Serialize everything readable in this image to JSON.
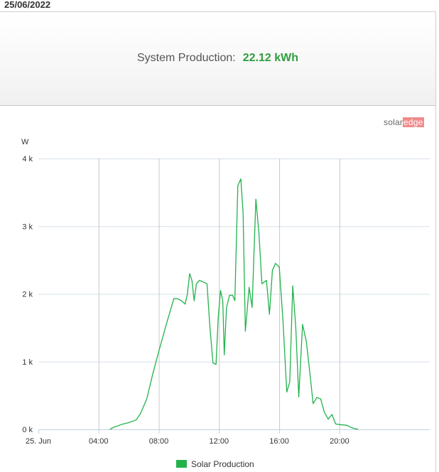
{
  "header": {
    "date": "25/06/2022"
  },
  "summary": {
    "label": "System Production:",
    "value": "22.12 kWh"
  },
  "brand": {
    "part1": "solar",
    "part2": "edge"
  },
  "colors": {
    "series": "#22b24c",
    "value": "#2e9d3e",
    "grid": "#d7e0ea",
    "axis": "#c0d0e0"
  },
  "chart_data": {
    "type": "line",
    "ylabel": "W",
    "ylim": [
      0,
      4000
    ],
    "xlim": [
      0,
      26
    ],
    "grid": true,
    "legend_position": "bottom-center",
    "x_ticks": [
      {
        "value": 0,
        "label": "25. Jun"
      },
      {
        "value": 4,
        "label": "04:00"
      },
      {
        "value": 8,
        "label": "08:00"
      },
      {
        "value": 12,
        "label": "12:00"
      },
      {
        "value": 16,
        "label": "16:00"
      },
      {
        "value": 20,
        "label": "20:00"
      }
    ],
    "y_ticks": [
      {
        "value": 0,
        "label": "0 k"
      },
      {
        "value": 1000,
        "label": "1 k"
      },
      {
        "value": 2000,
        "label": "2 k"
      },
      {
        "value": 3000,
        "label": "3 k"
      },
      {
        "value": 4000,
        "label": "4 k"
      }
    ],
    "series": [
      {
        "name": "Solar Production",
        "points": [
          [
            4.75,
            0
          ],
          [
            5.0,
            30
          ],
          [
            5.5,
            70
          ],
          [
            6.0,
            100
          ],
          [
            6.5,
            140
          ],
          [
            6.8,
            240
          ],
          [
            7.2,
            450
          ],
          [
            7.6,
            820
          ],
          [
            8.0,
            1150
          ],
          [
            8.5,
            1550
          ],
          [
            9.0,
            1930
          ],
          [
            9.25,
            1930
          ],
          [
            9.5,
            1900
          ],
          [
            9.75,
            1850
          ],
          [
            9.9,
            2000
          ],
          [
            10.05,
            2300
          ],
          [
            10.2,
            2200
          ],
          [
            10.35,
            1900
          ],
          [
            10.5,
            2150
          ],
          [
            10.7,
            2200
          ],
          [
            11.0,
            2170
          ],
          [
            11.2,
            2150
          ],
          [
            11.4,
            1500
          ],
          [
            11.6,
            980
          ],
          [
            11.8,
            960
          ],
          [
            11.95,
            1650
          ],
          [
            12.1,
            2050
          ],
          [
            12.25,
            1900
          ],
          [
            12.35,
            1100
          ],
          [
            12.5,
            1800
          ],
          [
            12.7,
            1980
          ],
          [
            12.9,
            1980
          ],
          [
            13.05,
            1900
          ],
          [
            13.25,
            3600
          ],
          [
            13.45,
            3700
          ],
          [
            13.6,
            3200
          ],
          [
            13.75,
            1450
          ],
          [
            14.0,
            2100
          ],
          [
            14.2,
            1800
          ],
          [
            14.45,
            3400
          ],
          [
            14.65,
            2900
          ],
          [
            14.85,
            2150
          ],
          [
            15.15,
            2200
          ],
          [
            15.35,
            1700
          ],
          [
            15.55,
            2350
          ],
          [
            15.75,
            2450
          ],
          [
            16.0,
            2400
          ],
          [
            16.25,
            1600
          ],
          [
            16.5,
            550
          ],
          [
            16.7,
            700
          ],
          [
            16.9,
            2120
          ],
          [
            17.1,
            1500
          ],
          [
            17.3,
            480
          ],
          [
            17.55,
            1550
          ],
          [
            17.8,
            1300
          ],
          [
            18.0,
            900
          ],
          [
            18.25,
            380
          ],
          [
            18.5,
            470
          ],
          [
            18.75,
            450
          ],
          [
            19.0,
            250
          ],
          [
            19.25,
            150
          ],
          [
            19.5,
            220
          ],
          [
            19.75,
            80
          ],
          [
            20.0,
            70
          ],
          [
            20.5,
            60
          ],
          [
            20.75,
            30
          ],
          [
            21.0,
            10
          ],
          [
            21.25,
            0
          ]
        ]
      }
    ]
  }
}
